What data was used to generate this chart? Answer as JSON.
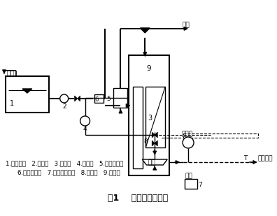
{
  "title": "图1    试验装置及流程",
  "legend_line1": "1.调节水箱   2.进水泵   3.膜组件   4.空压机   5.气体流量计",
  "legend_line2": "6.液位自控仪   7.出水自控装置   8.减压阀   9.反应器",
  "bg_color": "#ffffff",
  "line_color": "#000000"
}
